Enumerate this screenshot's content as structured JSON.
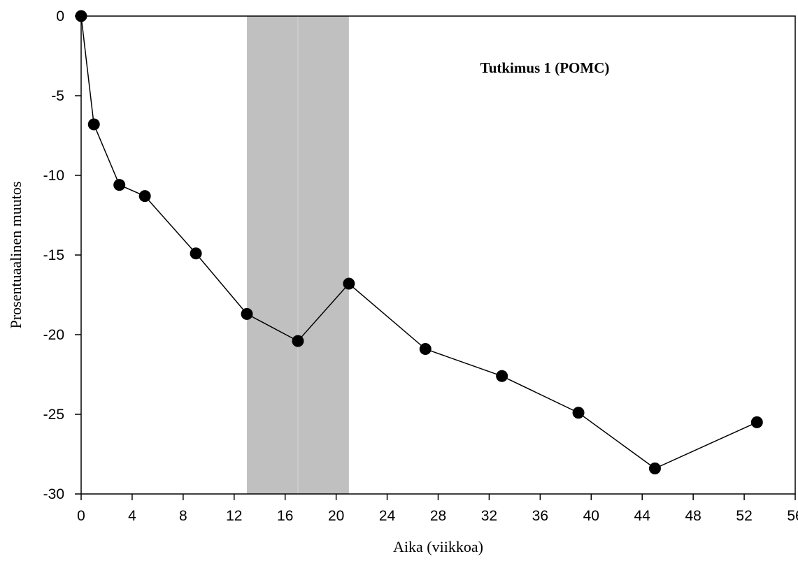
{
  "chart_data": {
    "type": "line",
    "title": "Tutkimus 1 (POMC)",
    "xlabel": "Aika (viikkoa)",
    "ylabel": "Prosentuaalinen muutos",
    "xlim": [
      0,
      56
    ],
    "ylim": [
      -30,
      0
    ],
    "xticks": [
      "0",
      "4",
      "8",
      "12",
      "16",
      "20",
      "24",
      "28",
      "32",
      "36",
      "40",
      "44",
      "48",
      "52",
      "56"
    ],
    "yticks": [
      "0",
      "-5",
      "-10",
      "-15",
      "-20",
      "-25",
      "-30"
    ],
    "grid": false,
    "legend": "none",
    "shaded_regions": [
      {
        "x_start": 13,
        "x_end": 17,
        "color": "#c0c0c0"
      },
      {
        "x_start": 17,
        "x_end": 21,
        "color": "#c0c0c0"
      }
    ],
    "series": [
      {
        "color": "#000000",
        "marker": "circle",
        "x": [
          0,
          1,
          3,
          5,
          9,
          13,
          17,
          21,
          27,
          33,
          39,
          45,
          53
        ],
        "y": [
          0,
          -6.8,
          -10.6,
          -11.3,
          -14.9,
          -18.7,
          -20.4,
          -16.8,
          -20.9,
          -22.6,
          -24.9,
          -28.4,
          -25.5
        ]
      }
    ]
  }
}
